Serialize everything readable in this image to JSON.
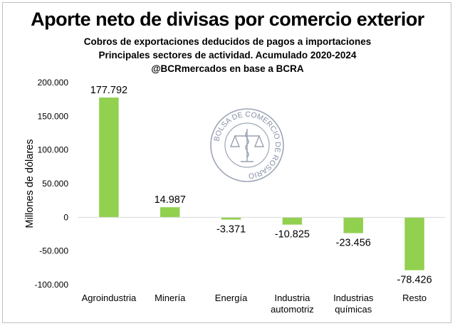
{
  "colors": {
    "bar": "#92d050",
    "axis": "#d9d9d9",
    "text": "#000000"
  },
  "chart_data": {
    "type": "bar",
    "title": "Aporte neto de divisas por comercio exterior",
    "subtitle_lines": [
      "Cobros de exportaciones deducidos de pagos a importaciones",
      "Principales sectores de actividad. Acumulado 2020-2024",
      "@BCRmercados en base a BCRA"
    ],
    "ylabel": "Millones de dólares",
    "xlabel": "",
    "ylim": [
      -100000,
      200000
    ],
    "yticks": [
      200000,
      150000,
      100000,
      50000,
      0,
      -50000,
      -100000
    ],
    "ytick_labels": [
      "200.000",
      "150.000",
      "100.000",
      "50.000",
      "0",
      "-50.000",
      "-100.000"
    ],
    "grid": false,
    "legend": "none",
    "categories": [
      [
        "Agroindustria"
      ],
      [
        "Minería"
      ],
      [
        "Energía"
      ],
      [
        "Industria",
        "automotriz"
      ],
      [
        "Industrias",
        "químicas"
      ],
      [
        "Resto"
      ]
    ],
    "values": [
      177792,
      14987,
      -3371,
      -10825,
      -23456,
      -78426
    ],
    "value_labels": [
      "177.792",
      "14.987",
      "-3.371",
      "-10.825",
      "-23.456",
      "-78.426"
    ]
  },
  "watermark": {
    "text": "BOLSA DE COMERCIO DE ROSARIO",
    "icon": "scales-of-justice-seal-icon"
  }
}
